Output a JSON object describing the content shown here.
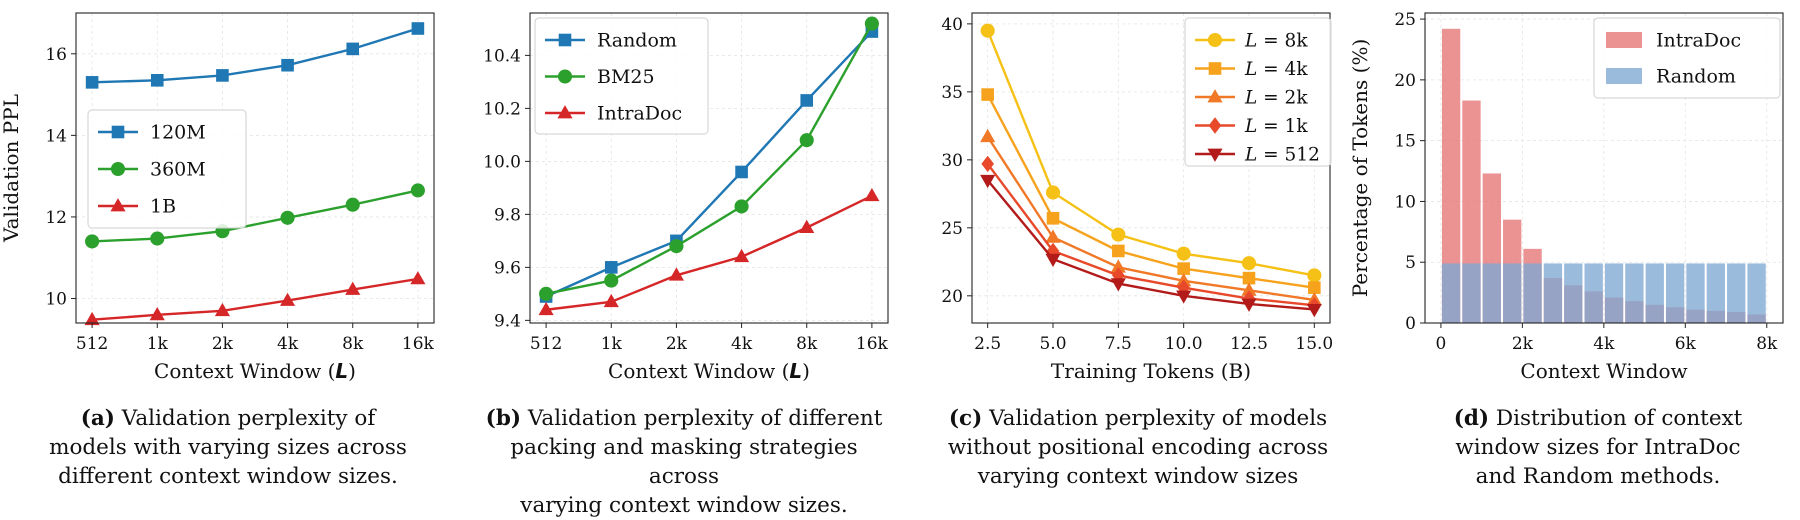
{
  "chart_data": [
    {
      "type": "line",
      "id": "a",
      "categories": [
        "512",
        "1k",
        "2k",
        "4k",
        "8k",
        "16k"
      ],
      "series": [
        {
          "name": "120M",
          "values": [
            15.3,
            15.35,
            15.47,
            15.72,
            16.12,
            16.62
          ],
          "color": "#1f77b4",
          "marker": "square"
        },
        {
          "name": "360M",
          "values": [
            11.4,
            11.47,
            11.65,
            11.98,
            12.3,
            12.65
          ],
          "color": "#2ca02c",
          "marker": "circle"
        },
        {
          "name": "1B",
          "values": [
            9.48,
            9.6,
            9.7,
            9.95,
            10.22,
            10.48
          ],
          "color": "#d62728",
          "marker": "triangle"
        }
      ],
      "ylim": [
        9.4,
        17.0
      ],
      "yticks": [
        10,
        12,
        14,
        16
      ],
      "ylabel": "Validation PPL",
      "xlabel_main": "Context Window (",
      "xlabel_var": "L",
      "xlabel_end": ")",
      "legend": "center-left",
      "grid": true,
      "caption_letter": "(a)",
      "caption_lines": [
        " Validation perplexity  of",
        "models with varying sizes across",
        "different context window sizes."
      ]
    },
    {
      "type": "line",
      "id": "b",
      "categories": [
        "512",
        "1k",
        "2k",
        "4k",
        "8k",
        "16k"
      ],
      "series": [
        {
          "name": "Random",
          "values": [
            9.49,
            9.6,
            9.7,
            9.96,
            10.23,
            10.49
          ],
          "color": "#1f77b4",
          "marker": "square"
        },
        {
          "name": "BM25",
          "values": [
            9.5,
            9.55,
            9.68,
            9.83,
            10.08,
            10.52
          ],
          "color": "#2ca02c",
          "marker": "circle"
        },
        {
          "name": "IntraDoc",
          "values": [
            9.44,
            9.47,
            9.57,
            9.64,
            9.75,
            9.87
          ],
          "color": "#d62728",
          "marker": "triangle"
        }
      ],
      "ylim": [
        9.39,
        10.56
      ],
      "yticks": [
        9.4,
        9.6,
        9.8,
        10.0,
        10.2,
        10.4
      ],
      "ytick_labels": [
        "9.4",
        "9.6",
        "9.8",
        "10.0",
        "10.2",
        "10.4"
      ],
      "xlabel_main": "Context Window (",
      "xlabel_var": "L",
      "xlabel_end": ")",
      "legend": "top-left",
      "grid": true,
      "caption_letter": "(b)",
      "caption_lines": [
        " Validation perplexity  of different",
        "packing and masking strategies across",
        "varying context window sizes."
      ]
    },
    {
      "type": "line",
      "id": "c",
      "x": [
        2.5,
        5.0,
        7.5,
        10.0,
        12.5,
        15.0
      ],
      "xticks": [
        2.5,
        5.0,
        7.5,
        10.0,
        12.5,
        15.0
      ],
      "xtick_labels": [
        "2.5",
        "5.0",
        "7.5",
        "10.0",
        "12.5",
        "15.0"
      ],
      "series": [
        {
          "name": "8k",
          "values": [
            39.5,
            27.6,
            24.5,
            23.1,
            22.4,
            21.5
          ],
          "color": "#f5c116",
          "marker": "circle"
        },
        {
          "name": "4k",
          "values": [
            34.8,
            25.7,
            23.3,
            22.0,
            21.3,
            20.6
          ],
          "color": "#f7a21c",
          "marker": "square"
        },
        {
          "name": "2k",
          "values": [
            31.7,
            24.3,
            22.1,
            21.1,
            20.4,
            19.7
          ],
          "color": "#f07826",
          "marker": "triangle"
        },
        {
          "name": "1k",
          "values": [
            29.7,
            23.3,
            21.5,
            20.6,
            19.8,
            19.3
          ],
          "color": "#e8492a",
          "marker": "diamond"
        },
        {
          "name": "512",
          "values": [
            28.5,
            22.7,
            20.9,
            20.0,
            19.4,
            19.0
          ],
          "color": "#b31b1b",
          "marker": "triangle-down"
        }
      ],
      "legend_prefix": "L",
      "legend_eq": " = ",
      "xlim": [
        1.9,
        15.6
      ],
      "ylim": [
        18.0,
        40.8
      ],
      "yticks": [
        20,
        25,
        30,
        35,
        40
      ],
      "xlabel": "Training Tokens (B)",
      "legend": "top-right",
      "grid": true,
      "caption_letter": "(c)",
      "caption_lines": [
        " Validation perplexity of models",
        "without positional encoding across",
        "varying context window sizes"
      ]
    },
    {
      "type": "bar",
      "id": "d",
      "bin_width": 512,
      "bin_starts": [
        0,
        512,
        1024,
        1536,
        2048,
        2560,
        3072,
        3584,
        4096,
        4608,
        5120,
        5632,
        6144,
        6656,
        7168,
        7680
      ],
      "series": [
        {
          "name": "IntraDoc",
          "values": [
            24.2,
            18.3,
            12.3,
            8.5,
            6.1,
            3.7,
            3.1,
            2.6,
            2.1,
            1.8,
            1.5,
            1.3,
            1.1,
            1.0,
            0.9,
            0.7
          ],
          "color": "#e57373"
        },
        {
          "name": "Random",
          "values": [
            4.9,
            4.9,
            4.9,
            4.9,
            4.9,
            4.9,
            4.9,
            4.9,
            4.9,
            4.9,
            4.9,
            4.9,
            4.9,
            4.9,
            4.9,
            4.9
          ],
          "color": "#7fa8d4"
        }
      ],
      "xlim": [
        -400,
        8600
      ],
      "ylim": [
        0,
        25.5
      ],
      "yticks": [
        0,
        5,
        10,
        15,
        20,
        25
      ],
      "xticks": [
        0,
        2048,
        4096,
        6144,
        8192
      ],
      "xtick_labels": [
        "0",
        "2k",
        "4k",
        "6k",
        "8k"
      ],
      "ylabel": "Percentage of Tokens (%)",
      "xlabel": "Context Window",
      "legend": "top-right",
      "grid": true,
      "caption_letter": "(d)",
      "caption_lines": [
        " Distribution of context",
        "window sizes for IntraDoc",
        "and Random methods."
      ]
    }
  ]
}
